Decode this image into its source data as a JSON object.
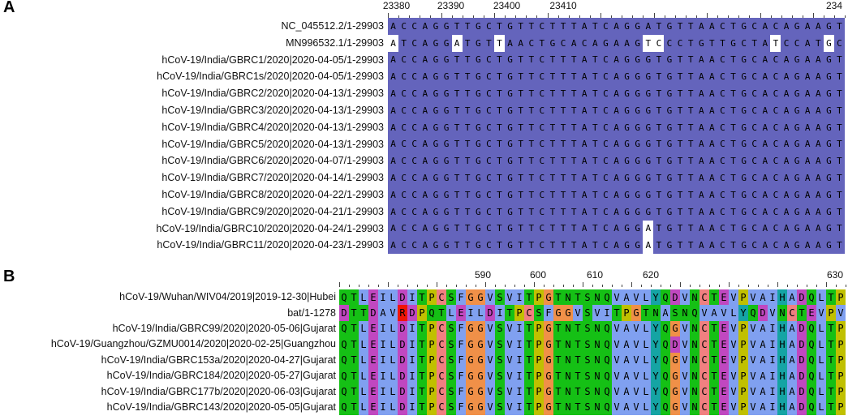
{
  "panelA": {
    "letter": "A",
    "ruler": [
      "23380",
      "23390",
      "23400",
      "23410",
      "234"
    ],
    "rows": [
      {
        "label": "NC_045512.2/1-29903",
        "seq": "ACCAGGTTGCTGTTCTTTATCAGGATGTTAACTGCACAGAAGT"
      },
      {
        "label": "MN996532.1/1-29903",
        "seq": "ATCAGGATGTTAACTGCACAGAAGTCCCTGTTGCTATCCATGC"
      },
      {
        "label": "hCoV-19/India/GBRC1/2020|2020-04-05/1-29903",
        "seq": "ACCAGGTTGCTGTTCTTTATCAGGGTGTTAACTGCACAGAAGT"
      },
      {
        "label": "hCoV-19/India/GBRC1s/2020|2020-04-05/1-29903",
        "seq": "ACCAGGTTGCTGTTCTTTATCAGGGTGTTAACTGCACAGAAGT"
      },
      {
        "label": "hCoV-19/India/GBRC2/2020|2020-04-13/1-29903",
        "seq": "ACCAGGTTGCTGTTCTTTATCAGGGTGTTAACTGCACAGAAGT"
      },
      {
        "label": "hCoV-19/India/GBRC3/2020|2020-04-13/1-29903",
        "seq": "ACCAGGTTGCTGTTCTTTATCAGGGTGTTAACTGCACAGAAGT"
      },
      {
        "label": "hCoV-19/India/GBRC4/2020|2020-04-13/1-29903",
        "seq": "ACCAGGTTGCTGTTCTTTATCAGGGTGTTAACTGCACAGAAGT"
      },
      {
        "label": "hCoV-19/India/GBRC5/2020|2020-04-13/1-29903",
        "seq": "ACCAGGTTGCTGTTCTTTATCAGGGTGTTAACTGCACAGAAGT"
      },
      {
        "label": "hCoV-19/India/GBRC6/2020|2020-04-07/1-29903",
        "seq": "ACCAGGTTGCTGTTCTTTATCAGGGTGTTAACTGCACAGAAGT"
      },
      {
        "label": "hCoV-19/India/GBRC7/2020|2020-04-14/1-29903",
        "seq": "ACCAGGTTGCTGTTCTTTATCAGGGTGTTAACTGCACAGAAGT"
      },
      {
        "label": "hCoV-19/India/GBRC8/2020|2020-04-22/1-29903",
        "seq": "ACCAGGTTGCTGTTCTTTATCAGGGTGTTAACTGCACAGAAGT"
      },
      {
        "label": "hCoV-19/India/GBRC9/2020|2020-04-21/1-29903",
        "seq": "ACCAGGTTGCTGTTCTTTATCAGGGTGTTAACTGCACAGAAGT"
      },
      {
        "label": "hCoV-19/India/GBRC10/2020|2020-04-24/1-29903",
        "seq": "ACCAGGTTGCTGTTCTTTATCAGGATGTTAACTGCACAGAAGT"
      },
      {
        "label": "hCoV-19/India/GBRC11/2020|2020-04-23/1-29903",
        "seq": "ACCAGGTTGCTGTTCTTTATCAGGATGTTAACTGCACAGAAGT"
      }
    ],
    "white_cells": [
      [
        1,
        0
      ],
      [
        1,
        6
      ],
      [
        1,
        10
      ],
      [
        1,
        24
      ],
      [
        1,
        25
      ],
      [
        1,
        36
      ],
      [
        1,
        41
      ],
      [
        12,
        24
      ],
      [
        13,
        24
      ]
    ],
    "colors": {
      "conserved": "#6464bc",
      "variant": "#ffffff",
      "text": "#000000"
    }
  },
  "panelB": {
    "letter": "B",
    "ruler": [
      "590",
      "600",
      "610",
      "620",
      "630"
    ],
    "rows": [
      {
        "label": "hCoV-19/Wuhan/WIV04/2019|2019-12-30|Hubei",
        "seq": "QTLEILDITPCSFGGVSVITPGTNTSNQVAVLYQDVNCTEVPVAIHADQLTP"
      },
      {
        "label": "bat/1-1278",
        "seq": "DTTDAVRDPQTLEILDITPCSFGGVSVITPGTNASNQVAVLYQDVNCTEVPV"
      },
      {
        "label": "hCoV-19/India/GBRC99/2020|2020-05-06|Gujarat",
        "seq": "QTLEILDITPCSFGGVSVITPGTNTSNQVAVLYQGVNCTEVPVAIHADQLTP"
      },
      {
        "label": "hCoV-19/Guangzhou/GZMU0014/2020|2020-02-25|Guangzhou",
        "seq": "QTLEILDITPCSFGGVSVITPGTNTSNQVAVLYQDVNCTEVPVAIHADQLTP"
      },
      {
        "label": "hCoV-19/India/GBRC153a/2020|2020-04-27|Gujarat",
        "seq": "QTLEILDITPCSFGGVSVITPGTNTSNQVAVLYQGVNCTEVPVAIHADQLTP"
      },
      {
        "label": "hCoV-19/India/GBRC184/2020|2020-05-27|Gujarat",
        "seq": "QTLEILDITPCSFGGVSVITPGTNTSNQVAVLYQGVNCTEVPVAIHADQLTP"
      },
      {
        "label": "hCoV-19/India/GBRC177b/2020|2020-06-03|Gujarat",
        "seq": "QTLEILDITPCSFGGVSVITPGTNTSNQVAVLYQGVNCTEVPVAIHADQLTP"
      },
      {
        "label": "hCoV-19/India/GBRC143/2020|2020-05-05|Gujarat",
        "seq": "QTLEILDITPCSFGGVSVITPGTNTSNQVAVLYQGVNCTEVPVAIHADQLTP"
      }
    ],
    "residue_colors": {
      "hydrophobic": "#80a0f0",
      "polar": "#15c015",
      "positive": "#f01505",
      "negative": "#c048c0",
      "cysteine": "#f08080",
      "glycine": "#f09048",
      "proline": "#c0c000",
      "aromatic": "#15a4a4",
      "none": "#ffffff"
    }
  }
}
